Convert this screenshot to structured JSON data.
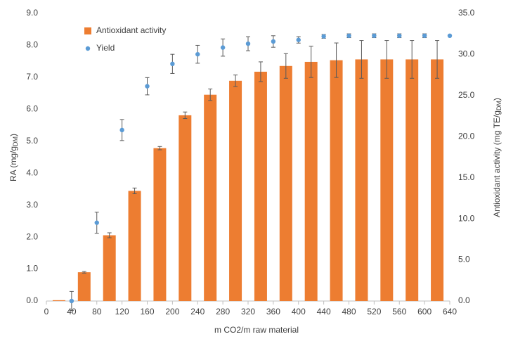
{
  "chart_data": {
    "type": "bar",
    "x_label": "m CO2/m raw material",
    "y_label": {
      "text": "RA (mg/g",
      "sub": "DM",
      "tail": ")"
    },
    "y2_label": {
      "text": "Antioxidant activity (mg TE/g",
      "sub": "DM",
      "tail": ")"
    },
    "xlim": [
      0,
      640
    ],
    "xticks": [
      0,
      40,
      80,
      120,
      160,
      200,
      240,
      280,
      320,
      360,
      400,
      440,
      480,
      520,
      560,
      600,
      640
    ],
    "ylim": [
      0,
      9
    ],
    "yticks": [
      {
        "value": 0,
        "label": "0.0"
      },
      {
        "value": 1,
        "label": "1.0"
      },
      {
        "value": 2,
        "label": "2.0"
      },
      {
        "value": 3,
        "label": "3.0"
      },
      {
        "value": 4,
        "label": "4.0"
      },
      {
        "value": 5,
        "label": "5.0"
      },
      {
        "value": 6,
        "label": "6.0"
      },
      {
        "value": 7,
        "label": "7.0"
      },
      {
        "value": 8,
        "label": "8.0"
      },
      {
        "value": 9,
        "label": "9.0"
      }
    ],
    "y2lim": [
      0,
      35
    ],
    "y2ticks": [
      {
        "value": 0,
        "label": "0.0"
      },
      {
        "value": 5,
        "label": "5.0"
      },
      {
        "value": 10,
        "label": "10.0"
      },
      {
        "value": 15,
        "label": "15.0"
      },
      {
        "value": 20,
        "label": "20.0"
      },
      {
        "value": 25,
        "label": "25.0"
      },
      {
        "value": 30,
        "label": "30.0"
      },
      {
        "value": 35,
        "label": "35.0"
      }
    ],
    "legend": "upper left",
    "error_color": "#595959",
    "series": [
      {
        "name": "Antioxidant activity",
        "type": "bar",
        "axis": "y2",
        "color": "#ed7d31",
        "x": [
          20,
          60,
          100,
          140,
          180,
          220,
          260,
          300,
          340,
          380,
          420,
          460,
          500,
          540,
          580,
          620
        ],
        "values": [
          0.1,
          3.5,
          8.0,
          13.4,
          18.6,
          22.6,
          25.1,
          26.8,
          27.9,
          28.6,
          29.1,
          29.3,
          29.4,
          29.4,
          29.4,
          29.4
        ],
        "errors": [
          0,
          0.1,
          0.3,
          0.35,
          0.2,
          0.4,
          0.7,
          0.7,
          1.2,
          1.5,
          1.9,
          2.1,
          2.3,
          2.3,
          2.3,
          2.3
        ]
      },
      {
        "name": "Yield",
        "type": "scatter",
        "axis": "y",
        "color": "#5b9bd5",
        "x": [
          40,
          80,
          120,
          160,
          200,
          240,
          280,
          320,
          360,
          400,
          440,
          480,
          520,
          560,
          600,
          640
        ],
        "values": [
          0.0,
          2.45,
          5.35,
          6.72,
          7.42,
          7.72,
          7.93,
          8.05,
          8.12,
          8.17,
          8.28,
          8.3,
          8.3,
          8.3,
          8.3,
          8.3
        ],
        "errors": [
          0.3,
          0.33,
          0.33,
          0.27,
          0.3,
          0.28,
          0.27,
          0.22,
          0.18,
          0.1,
          0.06,
          0.06,
          0.06,
          0.06,
          0.06,
          0
        ]
      }
    ]
  }
}
